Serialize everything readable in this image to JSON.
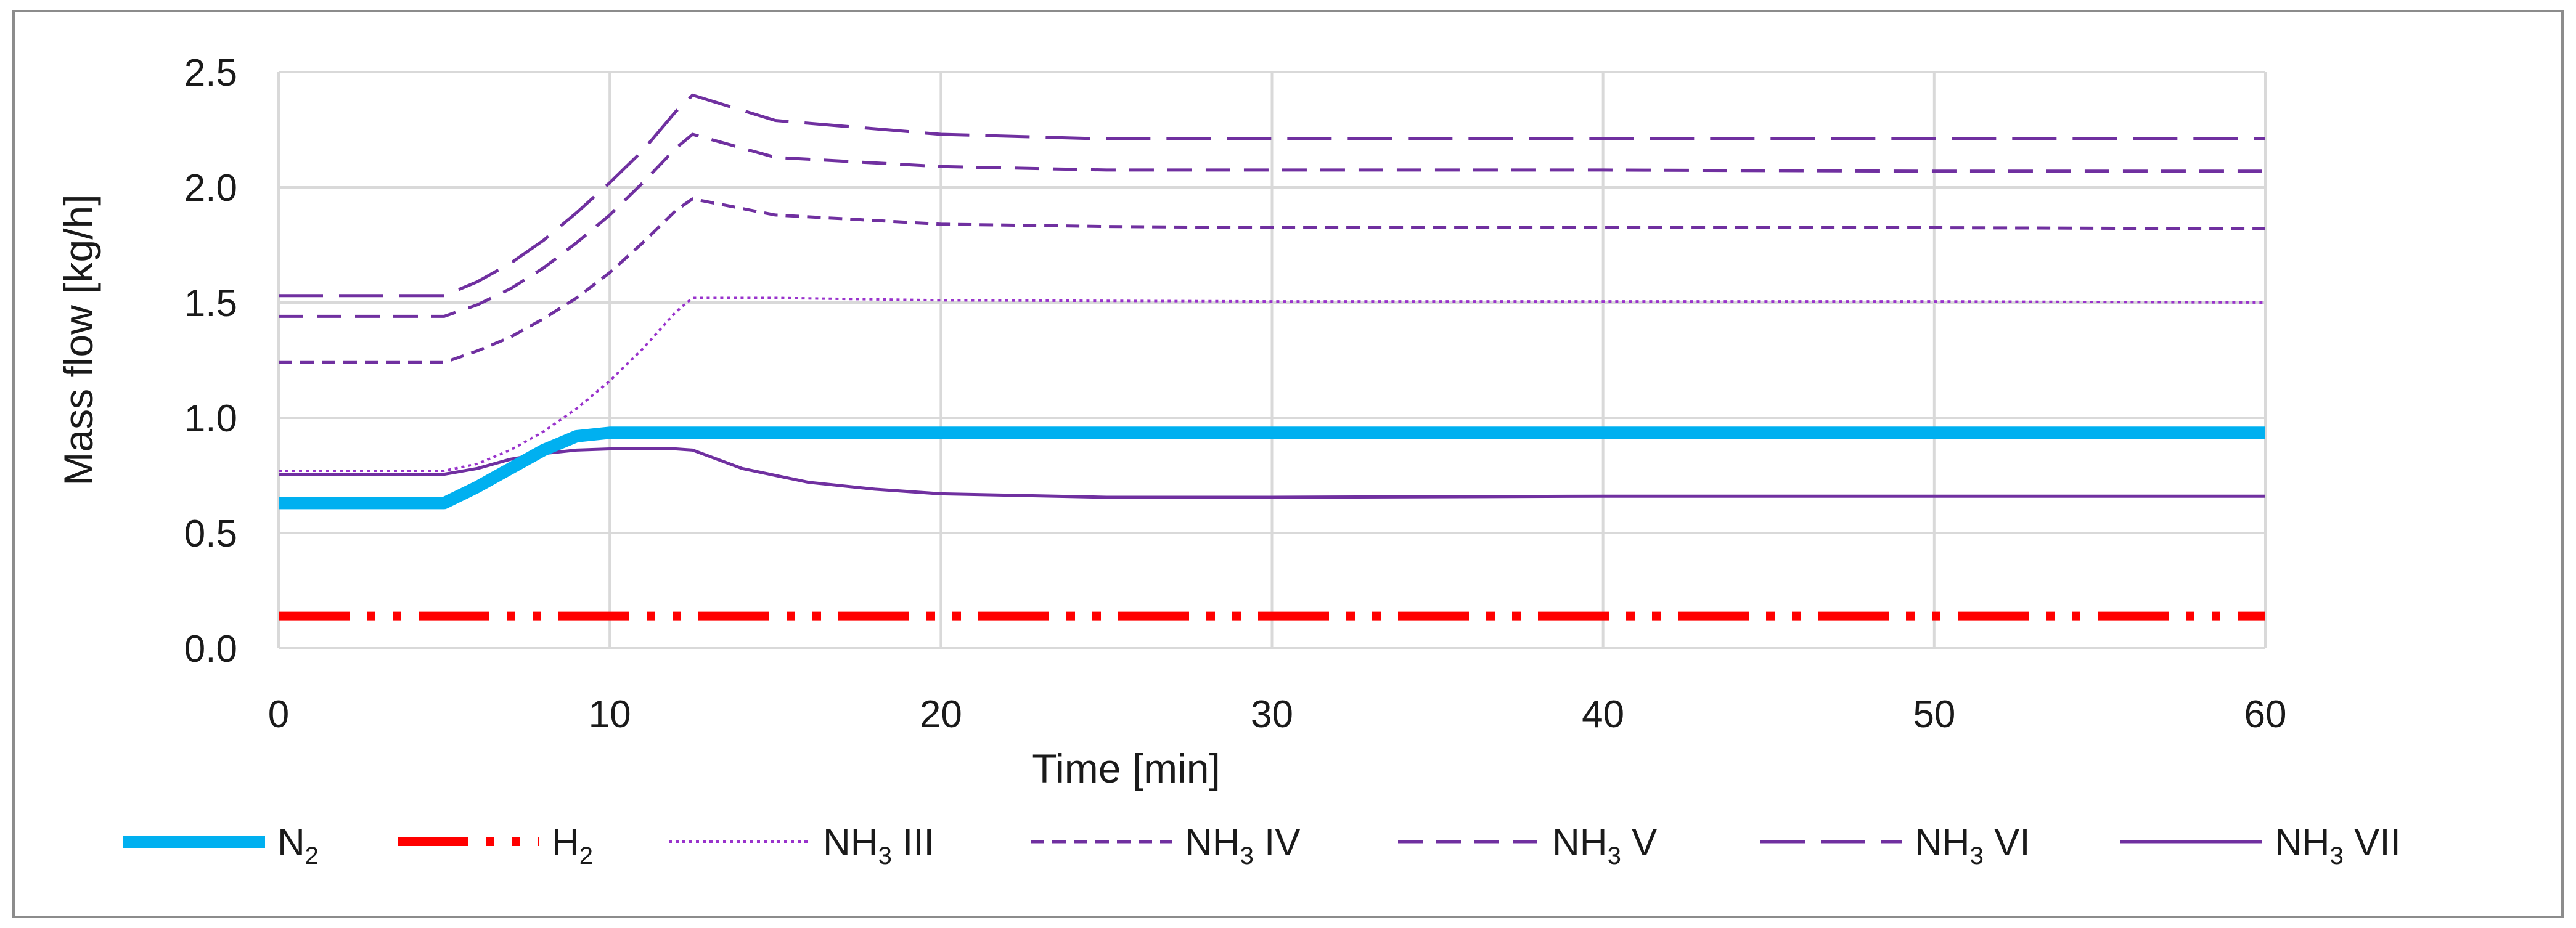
{
  "chart_data": {
    "type": "line",
    "title": "",
    "xlabel": "Time [min]",
    "ylabel": "Mass flow [kg/h]",
    "xlim": [
      0,
      60
    ],
    "ylim": [
      0,
      2.5
    ],
    "x_ticks": [
      "0",
      "10",
      "20",
      "30",
      "40",
      "50",
      "60"
    ],
    "y_ticks": [
      "0.0",
      "0.5",
      "1.0",
      "1.5",
      "2.0",
      "2.5"
    ],
    "grid": true,
    "legend_position": "bottom",
    "series": [
      {
        "name": "N2",
        "label_main": "N",
        "label_sub": "2",
        "label_suffix": "",
        "color": "#00B0F0",
        "style": "thick-solid",
        "points": [
          [
            0,
            0.63
          ],
          [
            5,
            0.63
          ],
          [
            6,
            0.7
          ],
          [
            7,
            0.78
          ],
          [
            8,
            0.86
          ],
          [
            9,
            0.92
          ],
          [
            10,
            0.935
          ],
          [
            12,
            0.935
          ],
          [
            20,
            0.935
          ],
          [
            30,
            0.935
          ],
          [
            40,
            0.935
          ],
          [
            50,
            0.935
          ],
          [
            60,
            0.935
          ]
        ]
      },
      {
        "name": "H2",
        "label_main": "H",
        "label_sub": "2",
        "label_suffix": "",
        "color": "#FF0000",
        "style": "dash-dot-dot",
        "points": [
          [
            0,
            0.14
          ],
          [
            60,
            0.14
          ]
        ]
      },
      {
        "name": "NH3 III",
        "label_main": "NH",
        "label_sub": "3",
        "label_suffix": " III",
        "color": "#9933CC",
        "style": "dotted",
        "points": [
          [
            0,
            0.77
          ],
          [
            5,
            0.77
          ],
          [
            6,
            0.8
          ],
          [
            7,
            0.86
          ],
          [
            8,
            0.94
          ],
          [
            9,
            1.04
          ],
          [
            10,
            1.16
          ],
          [
            11,
            1.3
          ],
          [
            12,
            1.46
          ],
          [
            12.5,
            1.52
          ],
          [
            15,
            1.52
          ],
          [
            20,
            1.51
          ],
          [
            30,
            1.505
          ],
          [
            40,
            1.505
          ],
          [
            50,
            1.505
          ],
          [
            60,
            1.5
          ]
        ]
      },
      {
        "name": "NH3 IV",
        "label_main": "NH",
        "label_sub": "3",
        "label_suffix": " IV",
        "color": "#7030A0",
        "style": "short-dash",
        "points": [
          [
            0,
            1.24
          ],
          [
            5,
            1.24
          ],
          [
            6,
            1.29
          ],
          [
            7,
            1.35
          ],
          [
            8,
            1.43
          ],
          [
            9,
            1.52
          ],
          [
            10,
            1.63
          ],
          [
            11,
            1.76
          ],
          [
            12,
            1.9
          ],
          [
            12.5,
            1.95
          ],
          [
            15,
            1.88
          ],
          [
            20,
            1.84
          ],
          [
            25,
            1.83
          ],
          [
            30,
            1.825
          ],
          [
            40,
            1.825
          ],
          [
            50,
            1.825
          ],
          [
            60,
            1.82
          ]
        ]
      },
      {
        "name": "NH3 V",
        "label_main": "NH",
        "label_sub": "3",
        "label_suffix": " V",
        "color": "#7030A0",
        "style": "medium-dash",
        "points": [
          [
            0,
            1.44
          ],
          [
            5,
            1.44
          ],
          [
            6,
            1.49
          ],
          [
            7,
            1.56
          ],
          [
            8,
            1.65
          ],
          [
            9,
            1.76
          ],
          [
            10,
            1.88
          ],
          [
            11,
            2.02
          ],
          [
            12,
            2.17
          ],
          [
            12.5,
            2.23
          ],
          [
            15,
            2.13
          ],
          [
            20,
            2.09
          ],
          [
            25,
            2.075
          ],
          [
            30,
            2.075
          ],
          [
            40,
            2.075
          ],
          [
            50,
            2.07
          ],
          [
            60,
            2.07
          ]
        ]
      },
      {
        "name": "NH3 VI",
        "label_main": "NH",
        "label_sub": "3",
        "label_suffix": " VI",
        "color": "#7030A0",
        "style": "long-dash",
        "points": [
          [
            0,
            1.53
          ],
          [
            5,
            1.53
          ],
          [
            6,
            1.59
          ],
          [
            7,
            1.67
          ],
          [
            8,
            1.77
          ],
          [
            9,
            1.89
          ],
          [
            10,
            2.02
          ],
          [
            11,
            2.16
          ],
          [
            12,
            2.33
          ],
          [
            12.5,
            2.4
          ],
          [
            15,
            2.29
          ],
          [
            20,
            2.23
          ],
          [
            25,
            2.21
          ],
          [
            30,
            2.21
          ],
          [
            40,
            2.21
          ],
          [
            50,
            2.21
          ],
          [
            60,
            2.21
          ]
        ]
      },
      {
        "name": "NH3 VII",
        "label_main": "NH",
        "label_sub": "3",
        "label_suffix": " VII",
        "color": "#7030A0",
        "style": "solid",
        "points": [
          [
            0,
            0.755
          ],
          [
            5,
            0.755
          ],
          [
            6,
            0.78
          ],
          [
            7,
            0.82
          ],
          [
            8,
            0.845
          ],
          [
            9,
            0.86
          ],
          [
            10,
            0.865
          ],
          [
            12,
            0.865
          ],
          [
            12.5,
            0.86
          ],
          [
            14,
            0.78
          ],
          [
            16,
            0.72
          ],
          [
            18,
            0.69
          ],
          [
            20,
            0.67
          ],
          [
            25,
            0.655
          ],
          [
            30,
            0.655
          ],
          [
            40,
            0.66
          ],
          [
            50,
            0.66
          ],
          [
            60,
            0.66
          ]
        ]
      }
    ]
  }
}
